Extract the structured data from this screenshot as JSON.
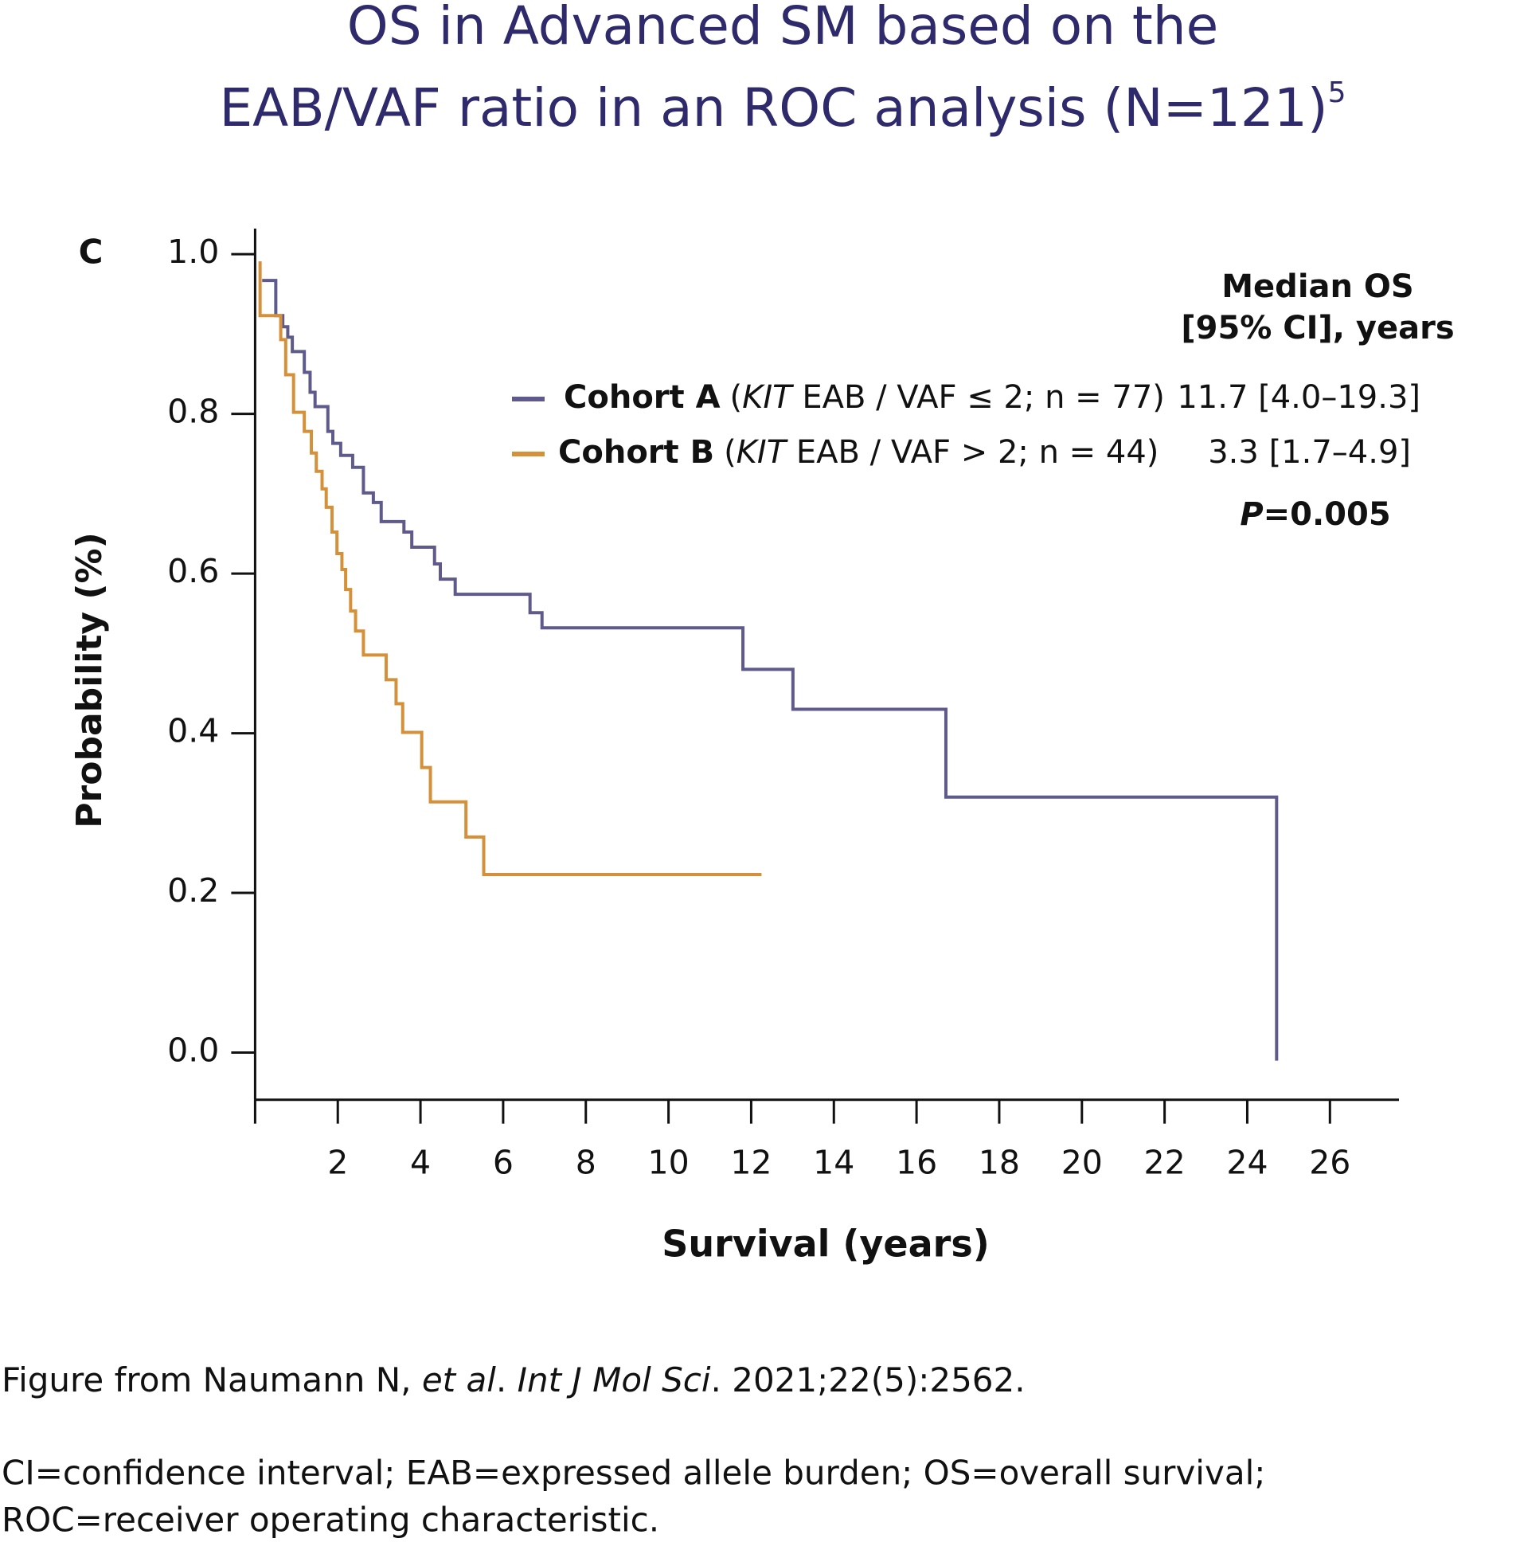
{
  "chart_data": {
    "type": "step",
    "title_lines": [
      "OS in Advanced SM based on the",
      "EAB/VAF ratio in an ROC analysis (N=121)"
    ],
    "title_superscript": "5",
    "panel_label": "C",
    "x_label": "Survival (years)",
    "y_label": "Probability (%)",
    "median_header": [
      "Median OS",
      "[95% CI], years"
    ],
    "p_value": [
      "P",
      "=0.005"
    ],
    "xlim": [
      0,
      27.67
    ],
    "xticks": [
      2,
      4,
      6,
      8,
      10,
      12,
      14,
      16,
      18,
      20,
      22,
      24,
      26
    ],
    "ylim": [
      -0.059,
      1.032
    ],
    "yticks": [
      {
        "value": 0,
        "label": "0.0"
      },
      0.2,
      0.4,
      0.6,
      0.8,
      {
        "value": 1,
        "label": "1.0"
      }
    ],
    "series": [
      {
        "name": "Cohort A",
        "detail": [
          "(",
          "KIT",
          " EAB / VAF ≤ 2; n = 77)"
        ],
        "median": "11.7 [4.0–19.3]",
        "color": "#5f5a8c",
        "x": [
          0.17,
          0.5,
          0.67,
          0.79,
          0.9,
          1.19,
          1.33,
          1.45,
          1.76,
          1.88,
          2.07,
          2.36,
          2.62,
          2.86,
          3.05,
          3.6,
          3.79,
          4.34,
          4.48,
          4.84,
          6.65,
          6.94,
          11.8,
          13.01,
          16.71,
          24.71
        ],
        "values": [
          0.967,
          0.923,
          0.909,
          0.896,
          0.878,
          0.852,
          0.827,
          0.809,
          0.778,
          0.763,
          0.748,
          0.733,
          0.701,
          0.689,
          0.665,
          0.652,
          0.633,
          0.612,
          0.593,
          0.574,
          0.551,
          0.532,
          0.48,
          0.43,
          0.32,
          -0.01
        ]
      },
      {
        "name": "Cohort B",
        "detail": [
          "(",
          "KIT",
          " EAB / VAF > 2; n = 44)"
        ],
        "median": "3.3 [1.7–4.9]",
        "color": "#d4913a",
        "x": [
          0.12,
          0.12,
          0.62,
          0.74,
          0.93,
          1.19,
          1.36,
          1.48,
          1.62,
          1.72,
          1.86,
          1.98,
          2.1,
          2.19,
          2.31,
          2.43,
          2.62,
          3.17,
          3.41,
          3.57,
          4.03,
          4.24,
          5.1,
          5.53,
          12.25
        ],
        "values": [
          0.991,
          0.923,
          0.893,
          0.849,
          0.802,
          0.778,
          0.751,
          0.728,
          0.706,
          0.683,
          0.652,
          0.625,
          0.605,
          0.58,
          0.553,
          0.528,
          0.498,
          0.467,
          0.437,
          0.401,
          0.357,
          0.314,
          0.27,
          0.223,
          0.223
        ]
      }
    ]
  },
  "footnotes": {
    "source": [
      "Figure from Naumann N, ",
      "et al",
      ". ",
      "Int J Mol Sci",
      ". 2021;22(5):2562."
    ],
    "abbreviations": [
      "CI=confidence interval; EAB=expressed allele burden; OS=overall survival;",
      "ROC=receiver operating characteristic."
    ]
  }
}
